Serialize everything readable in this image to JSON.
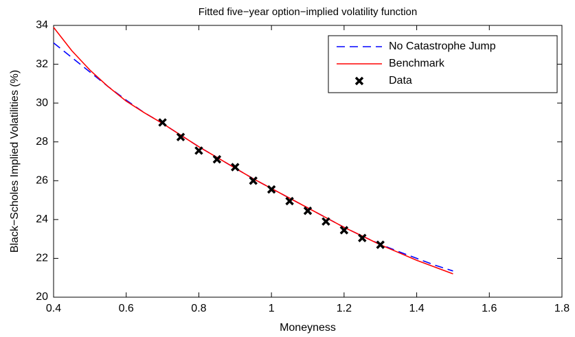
{
  "chart_data": {
    "type": "line",
    "title": "Fitted five−year option−implied volatility function",
    "x_label": "Moneyness",
    "y_label": "Black−Scholes Implied Volatilities (%)",
    "xlim": [
      0.4,
      1.8
    ],
    "xticks": [
      0.4,
      0.6,
      0.8,
      1,
      1.2,
      1.4,
      1.6,
      1.8
    ],
    "ylim": [
      20,
      34
    ],
    "yticks": [
      20,
      22,
      24,
      26,
      28,
      30,
      32,
      34
    ],
    "legend": "upper right",
    "series": [
      {
        "name": "No Catastrophe Jump",
        "color": "#0000ff",
        "line_style": "dashed",
        "marker": "none",
        "x": [
          0.4,
          0.45,
          0.5,
          0.55,
          0.6,
          0.65,
          0.7,
          0.75,
          0.8,
          0.85,
          0.9,
          0.95,
          1.0,
          1.05,
          1.1,
          1.15,
          1.2,
          1.25,
          1.3,
          1.35,
          1.4,
          1.45,
          1.5
        ],
        "values": [
          33.1,
          32.35,
          31.6,
          30.85,
          30.15,
          29.5,
          28.95,
          28.35,
          27.75,
          27.2,
          26.65,
          26.1,
          25.6,
          25.1,
          24.6,
          24.1,
          23.6,
          23.15,
          22.72,
          22.35,
          22.0,
          21.65,
          21.35
        ]
      },
      {
        "name": "Benchmark",
        "color": "#ff0000",
        "line_style": "solid",
        "marker": "none",
        "x": [
          0.4,
          0.45,
          0.5,
          0.55,
          0.6,
          0.65,
          0.7,
          0.75,
          0.8,
          0.85,
          0.9,
          0.95,
          1.0,
          1.05,
          1.1,
          1.15,
          1.2,
          1.25,
          1.3,
          1.35,
          1.4,
          1.45,
          1.5
        ],
        "values": [
          33.9,
          32.7,
          31.7,
          30.85,
          30.1,
          29.5,
          28.95,
          28.35,
          27.75,
          27.2,
          26.65,
          26.1,
          25.6,
          25.1,
          24.6,
          24.1,
          23.6,
          23.15,
          22.7,
          22.3,
          21.9,
          21.55,
          21.2
        ]
      },
      {
        "name": "Data",
        "color": "#000000",
        "line_style": "none",
        "marker": "x",
        "x": [
          0.7,
          0.75,
          0.8,
          0.85,
          0.9,
          0.95,
          1.0,
          1.05,
          1.1,
          1.15,
          1.2,
          1.25,
          1.3
        ],
        "values": [
          29.0,
          28.25,
          27.55,
          27.1,
          26.7,
          26.0,
          25.55,
          24.95,
          24.45,
          23.9,
          23.45,
          23.05,
          22.7
        ]
      }
    ]
  }
}
